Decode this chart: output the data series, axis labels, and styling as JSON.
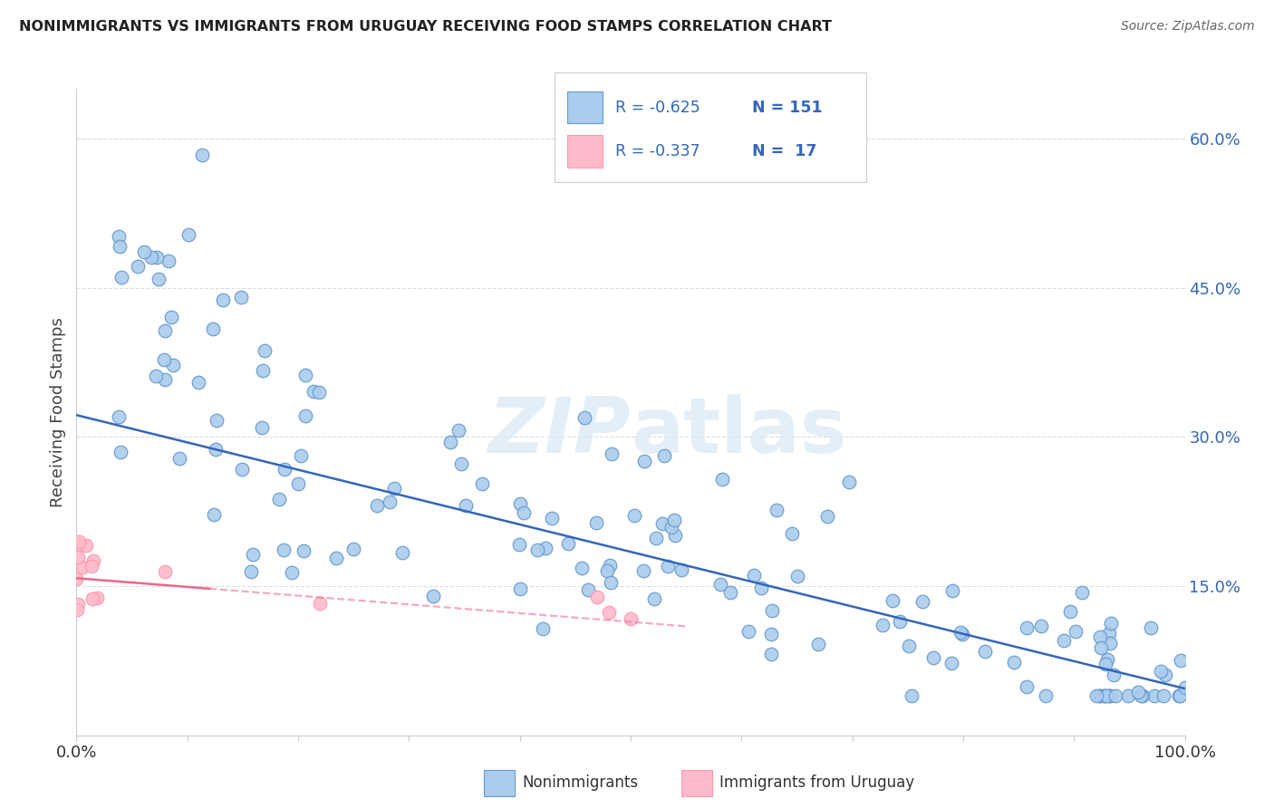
{
  "title": "NONIMMIGRANTS VS IMMIGRANTS FROM URUGUAY RECEIVING FOOD STAMPS CORRELATION CHART",
  "source": "Source: ZipAtlas.com",
  "ylabel": "Receiving Food Stamps",
  "watermark_zip": "ZIP",
  "watermark_atlas": "atlas",
  "nonimmigrant_label": "Nonimmigrants",
  "immigrant_label": "Immigrants from Uruguay",
  "blue_face": "#AACCEE",
  "blue_edge": "#6699CC",
  "blue_line": "#3366BB",
  "pink_face": "#FFBBCC",
  "pink_edge": "#FF99AA",
  "pink_line": "#EE6688",
  "xlim": [
    0.0,
    1.0
  ],
  "ylim": [
    0.0,
    0.65
  ],
  "ytick_vals": [
    0.15,
    0.3,
    0.45,
    0.6
  ],
  "ytick_labels": [
    "15.0%",
    "30.0%",
    "45.0%",
    "60.0%"
  ],
  "xtick_vals": [
    0.0,
    0.1,
    0.2,
    0.3,
    0.4,
    0.5,
    0.6,
    0.7,
    0.8,
    0.9,
    1.0
  ],
  "blue_intercept": 0.322,
  "blue_slope": -0.275,
  "pink_intercept": 0.158,
  "pink_slope": -0.088,
  "legend_text_color": "#3366BB",
  "legend_r1": "R = -0.625",
  "legend_n1": "N = 151",
  "legend_r2": "R = -0.337",
  "legend_n2": "N =  17",
  "title_color": "#222222",
  "source_color": "#666666",
  "grid_color": "#DDDDDD",
  "spine_color": "#CCCCCC"
}
